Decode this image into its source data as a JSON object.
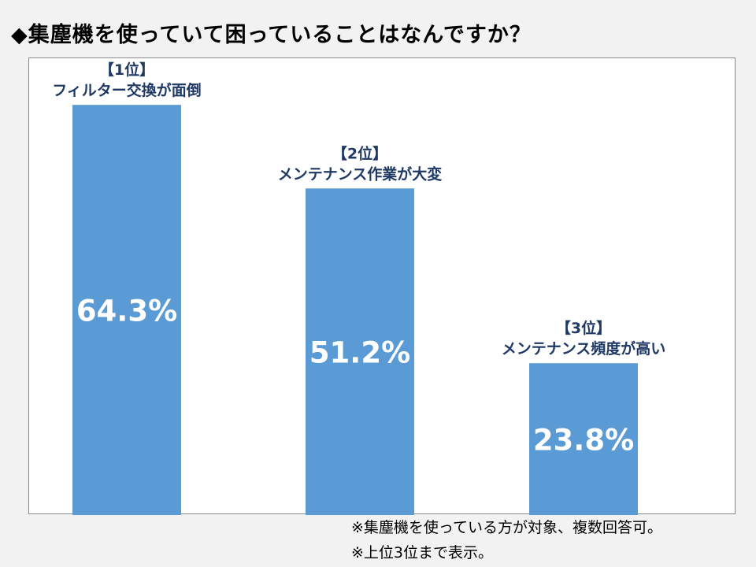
{
  "title": "◆集塵機を使っていて困っていることはなんですか？",
  "notes": [
    "※集塵機を使っている方が対象、複数回答可。",
    "※上位3位まで表示。"
  ],
  "colors": {
    "bar": "#5b9bd5",
    "category_label": "#1f3864",
    "value_label": "#ffffff",
    "background": "#f2f2f2",
    "plot_background": "#ffffff"
  },
  "chart_data": {
    "type": "bar",
    "title": "◆集塵機を使っていて困っていることはなんですか？",
    "categories": [
      [
        "【1位】",
        "フィルター交換が面倒"
      ],
      [
        "【2位】",
        "メンテナンス作業が大変"
      ],
      [
        "【3位】",
        "メンテナンス頻度が高い"
      ]
    ],
    "values": [
      64.3,
      51.2,
      23.8
    ],
    "value_labels": [
      "64.3%",
      "51.2%",
      "23.8%"
    ],
    "ylim": [
      0,
      70
    ],
    "grid": false,
    "legend": "none",
    "xlabel": "",
    "ylabel": ""
  }
}
